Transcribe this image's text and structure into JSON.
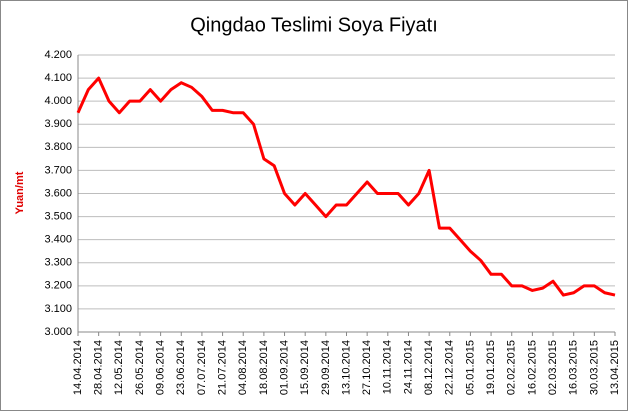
{
  "chart_data": {
    "type": "line",
    "title": "Qingdao Teslimi Soya Fiyatı",
    "y_label": "Yuan/mt",
    "x": [
      "14.04.2014",
      null,
      "28.04.2014",
      null,
      "12.05.2014",
      null,
      "26.05.2014",
      null,
      "09.06.2014",
      null,
      "23.06.2014",
      null,
      "07.07.2014",
      null,
      "21.07.2014",
      null,
      "04.08.2014",
      null,
      "18.08.2014",
      null,
      "01.09.2014",
      null,
      "15.09.2014",
      null,
      "29.09.2014",
      null,
      "13.10.2014",
      null,
      "27.10.2014",
      null,
      "10.11.2014",
      null,
      "24.11.2014",
      null,
      "08.12.2014",
      null,
      "22.12.2014",
      null,
      "05.01.2015",
      null,
      "19.01.2015",
      null,
      "02.02.2015",
      null,
      "16.02.2015",
      null,
      "02.03.2015",
      null,
      "16.03.2015",
      null,
      "30.03.2015",
      null,
      "13.04.2015"
    ],
    "series": [
      {
        "color": "#ff0000",
        "values": [
          3.95,
          4.05,
          4.1,
          4.0,
          3.95,
          4.0,
          4.0,
          4.05,
          4.0,
          4.05,
          4.08,
          4.06,
          4.02,
          3.96,
          3.96,
          3.95,
          3.95,
          3.9,
          3.75,
          3.72,
          3.6,
          3.55,
          3.6,
          3.55,
          3.5,
          3.55,
          3.55,
          3.6,
          3.65,
          3.6,
          3.6,
          3.6,
          3.55,
          3.6,
          3.7,
          3.45,
          3.45,
          3.4,
          3.35,
          3.31,
          3.25,
          3.25,
          3.2,
          3.2,
          3.18,
          3.19,
          3.22,
          3.16,
          3.17,
          3.2,
          3.2,
          3.17,
          3.16
        ]
      }
    ],
    "ylim": [
      3.0,
      4.2
    ],
    "yticks": [
      {
        "value": 3.0,
        "label": "3.000"
      },
      {
        "value": 3.1,
        "label": "3.100"
      },
      {
        "value": 3.2,
        "label": "3.200"
      },
      {
        "value": 3.3,
        "label": "3.300"
      },
      {
        "value": 3.4,
        "label": "3.400"
      },
      {
        "value": 3.5,
        "label": "3.500"
      },
      {
        "value": 3.6,
        "label": "3.600"
      },
      {
        "value": 3.7,
        "label": "3.700"
      },
      {
        "value": 3.8,
        "label": "3.800"
      },
      {
        "value": 3.9,
        "label": "3.900"
      },
      {
        "value": 4.0,
        "label": "4.000"
      },
      {
        "value": 4.1,
        "label": "4.100"
      },
      {
        "value": 4.2,
        "label": "4.200"
      }
    ],
    "grid": true
  }
}
